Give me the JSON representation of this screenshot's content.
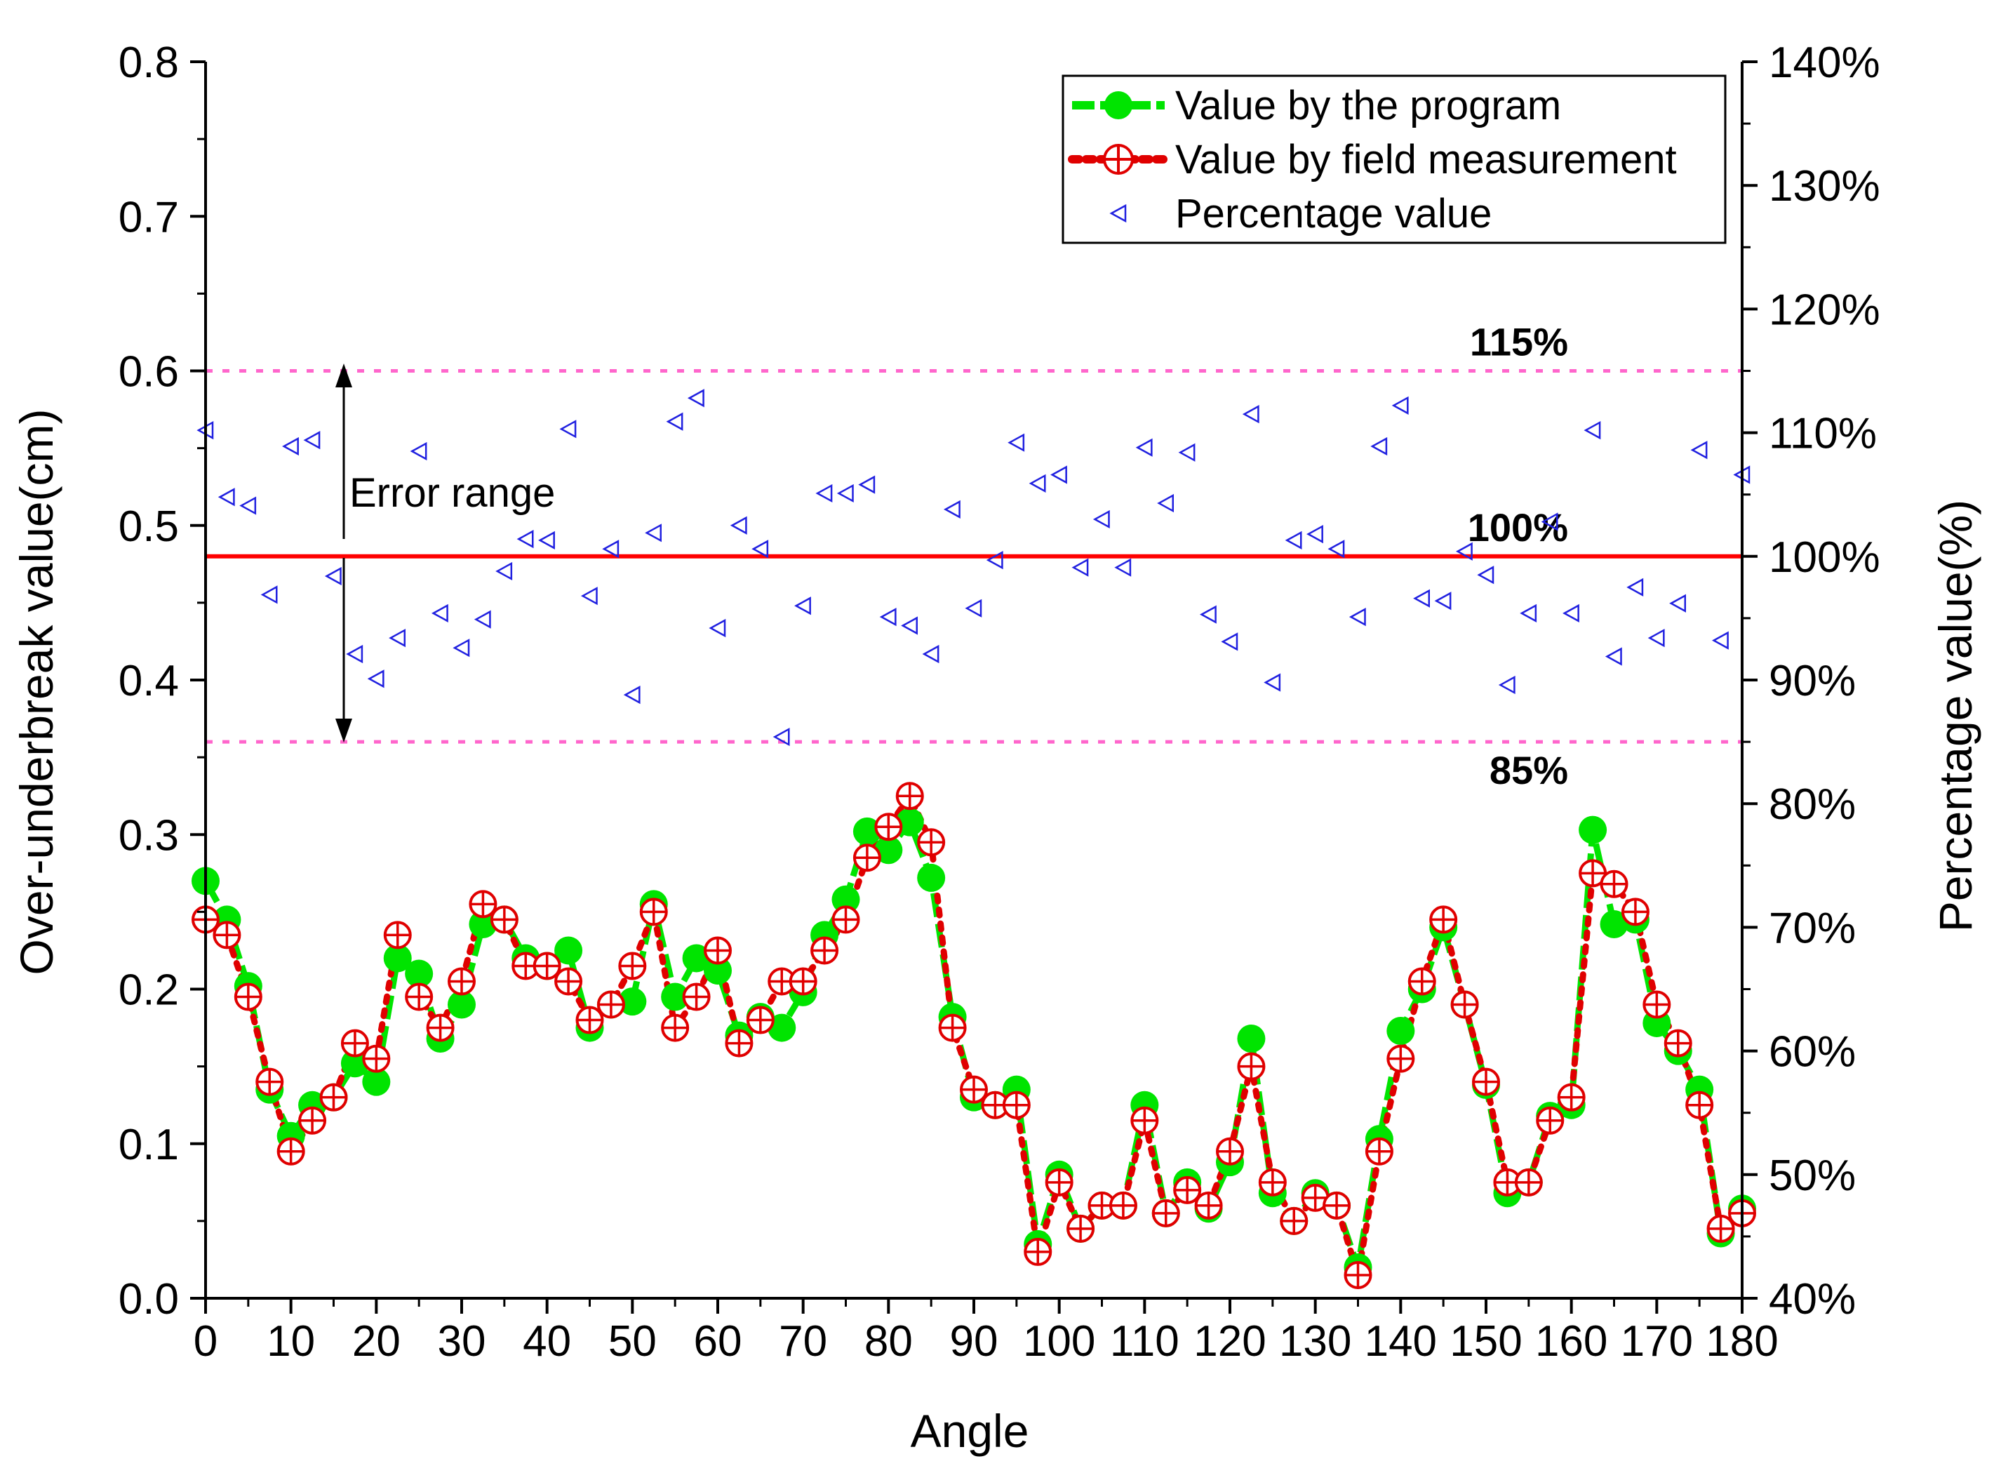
{
  "chart_data": {
    "type": "line",
    "xlabel": "Angle",
    "ylabel": "Over-underbreak value(cm)",
    "y2label": "Percentage value(%)",
    "xlim": [
      0,
      180
    ],
    "ylim": [
      0,
      0.8
    ],
    "y2lim": [
      40,
      140
    ],
    "x_ticks": [
      0,
      10,
      20,
      30,
      40,
      50,
      60,
      70,
      80,
      90,
      100,
      110,
      120,
      130,
      140,
      150,
      160,
      170,
      180
    ],
    "x_tick_labels": [
      "0",
      "10",
      "20",
      "30",
      "40",
      "50",
      "60",
      "70",
      "80",
      "90",
      "100",
      "110",
      "120",
      "130",
      "140",
      "150",
      "160",
      "170",
      "180"
    ],
    "y_ticks": [
      0.0,
      0.1,
      0.2,
      0.3,
      0.4,
      0.5,
      0.6,
      0.7,
      0.8
    ],
    "y_tick_labels": [
      "0.0",
      "0.1",
      "0.2",
      "0.3",
      "0.4",
      "0.5",
      "0.6",
      "0.7",
      "0.8"
    ],
    "y2_ticks": [
      40,
      50,
      60,
      70,
      80,
      90,
      100,
      110,
      120,
      130,
      140
    ],
    "y2_tick_labels": [
      "40%",
      "50%",
      "60%",
      "70%",
      "80%",
      "90%",
      "100%",
      "110%",
      "120%",
      "130%",
      "140%"
    ],
    "legend_position": "top-right",
    "x": [
      0,
      2.5,
      5,
      7.5,
      10,
      12.5,
      15,
      17.5,
      20,
      22.5,
      25,
      27.5,
      30,
      32.5,
      35,
      37.5,
      40,
      42.5,
      45,
      47.5,
      50,
      52.5,
      55,
      57.5,
      60,
      62.5,
      65,
      67.5,
      70,
      72.5,
      75,
      77.5,
      80,
      82.5,
      85,
      87.5,
      90,
      92.5,
      95,
      97.5,
      100,
      102.5,
      105,
      107.5,
      110,
      112.5,
      115,
      117.5,
      120,
      122.5,
      125,
      127.5,
      130,
      132.5,
      135,
      137.5,
      140,
      142.5,
      145,
      147.5,
      150,
      152.5,
      155,
      157.5,
      160,
      162.5,
      165,
      167.5,
      170,
      172.5,
      175,
      177.5,
      180
    ],
    "series": [
      {
        "name": "Value by the program",
        "axis": "left",
        "color": "#00e400",
        "values": [
          0.27,
          0.245,
          0.202,
          0.135,
          0.105,
          0.125,
          0.13,
          0.152,
          0.14,
          0.22,
          0.21,
          0.168,
          0.19,
          0.242,
          0.245,
          0.22,
          0.215,
          0.225,
          0.175,
          0.19,
          0.192,
          0.255,
          0.195,
          0.22,
          0.212,
          0.17,
          0.182,
          0.175,
          0.198,
          0.235,
          0.258,
          0.302,
          0.29,
          0.308,
          0.272,
          0.182,
          0.13,
          0.125,
          0.135,
          0.035,
          0.08,
          0.045,
          0.06,
          0.06,
          0.125,
          0.055,
          0.075,
          0.058,
          0.088,
          0.168,
          0.068,
          0.05,
          0.068,
          0.06,
          0.02,
          0.103,
          0.173,
          0.2,
          0.24,
          0.19,
          0.138,
          0.068,
          0.075,
          0.118,
          0.125,
          0.303,
          0.242,
          0.245,
          0.178,
          0.16,
          0.135,
          0.042,
          0.058
        ]
      },
      {
        "name": "Value by field measurement",
        "axis": "left",
        "color": "#e00000",
        "values": [
          0.245,
          0.235,
          0.195,
          0.14,
          0.095,
          0.115,
          0.13,
          0.165,
          0.155,
          0.235,
          0.195,
          0.175,
          0.205,
          0.255,
          0.245,
          0.215,
          0.215,
          0.205,
          0.18,
          0.19,
          0.215,
          0.25,
          0.175,
          0.195,
          0.225,
          0.165,
          0.18,
          0.205,
          0.205,
          0.225,
          0.245,
          0.285,
          0.305,
          0.325,
          0.295,
          0.175,
          0.135,
          0.125,
          0.125,
          0.03,
          0.075,
          0.045,
          0.06,
          0.06,
          0.115,
          0.055,
          0.07,
          0.06,
          0.095,
          0.15,
          0.075,
          0.05,
          0.065,
          0.06,
          0.015,
          0.095,
          0.155,
          0.205,
          0.245,
          0.19,
          0.14,
          0.075,
          0.075,
          0.115,
          0.13,
          0.275,
          0.268,
          0.25,
          0.19,
          0.165,
          0.125,
          0.045,
          0.055
        ]
      },
      {
        "name": "Percentage value",
        "axis": "right",
        "color": "#2020e0",
        "values": [
          110.2,
          104.8,
          104.1,
          96.9,
          108.9,
          109.4,
          98.4,
          92.1,
          90.1,
          93.4,
          108.5,
          95.4,
          92.6,
          94.9,
          98.8,
          101.4,
          101.3,
          110.3,
          96.8,
          100.6,
          88.8,
          101.9,
          110.9,
          112.8,
          94.2,
          102.5,
          100.6,
          85.4,
          96.0,
          105.1,
          105.1,
          105.8,
          95.1,
          94.4,
          92.1,
          103.8,
          95.8,
          99.7,
          109.2,
          105.9,
          106.6,
          99.1,
          103.0,
          99.1,
          108.8,
          104.3,
          108.4,
          95.3,
          93.1,
          111.5,
          89.8,
          101.3,
          101.8,
          100.6,
          95.1,
          108.9,
          112.2,
          96.6,
          96.4,
          100.4,
          98.5,
          89.6,
          95.4,
          102.8,
          95.4,
          110.2,
          91.9,
          97.5,
          93.4,
          96.2,
          108.6,
          93.2,
          106.6
        ]
      }
    ],
    "reference_lines": [
      {
        "label": "115%",
        "value": 115,
        "style": "dotted",
        "color": "#ff66cc"
      },
      {
        "label": "100%",
        "value": 100,
        "style": "solid",
        "color": "#ff0000"
      },
      {
        "label": "85%",
        "value": 85,
        "style": "dotted",
        "color": "#ff66cc"
      }
    ],
    "annotations": [
      {
        "text": "Error range"
      }
    ]
  }
}
